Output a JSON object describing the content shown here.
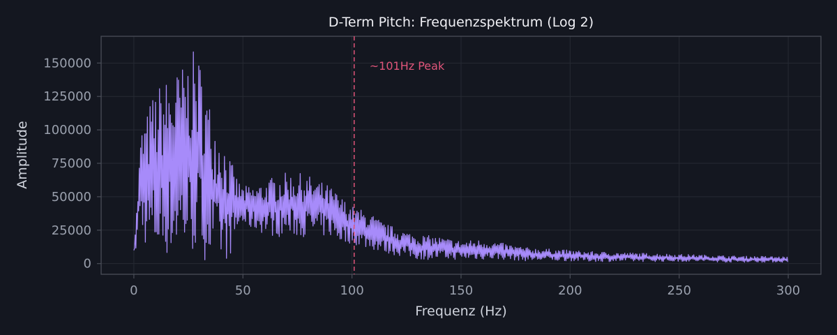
{
  "chart_data": {
    "type": "line",
    "title": "D-Term Pitch: Frequenzspektrum (Log 2)",
    "xlabel": "Frequenz (Hz)",
    "ylabel": "Amplitude",
    "xlim": [
      -15,
      315
    ],
    "ylim": [
      -8000,
      170000
    ],
    "xticks": [
      0,
      50,
      100,
      150,
      200,
      250,
      300
    ],
    "yticks": [
      0,
      25000,
      50000,
      75000,
      100000,
      125000,
      150000
    ],
    "grid": true,
    "colors": {
      "background": "#141720",
      "plot_background": "#141720",
      "frame": "#4a4e58",
      "grid": "#262a33",
      "line": "#a78bfa",
      "annotation": "#e0557a"
    },
    "annotation": {
      "x": 101,
      "text": "~101Hz Peak"
    },
    "series": [
      {
        "x": [
          0,
          1,
          2,
          3,
          4,
          5,
          6,
          8,
          10,
          12,
          14,
          16,
          18,
          20,
          22,
          24,
          26,
          28,
          30,
          32,
          34,
          36,
          38,
          40,
          42,
          44,
          46,
          48,
          50,
          55,
          60,
          65,
          70,
          75,
          80,
          85,
          90,
          95,
          100,
          105,
          110,
          115,
          120,
          125,
          130,
          140,
          150,
          160,
          170,
          180,
          190,
          200,
          210,
          220,
          230,
          240,
          250,
          260,
          270,
          280,
          290,
          300
        ],
        "upper": [
          18000,
          35000,
          60000,
          95000,
          105000,
          110000,
          112000,
          125000,
          130000,
          135000,
          138000,
          140000,
          142000,
          145000,
          148000,
          152000,
          156000,
          160000,
          155000,
          140000,
          125000,
          115000,
          105000,
          100000,
          90000,
          80000,
          70000,
          62000,
          58000,
          58000,
          62000,
          66000,
          68000,
          68000,
          66000,
          62000,
          58000,
          50000,
          43000,
          40000,
          36000,
          30000,
          27000,
          24000,
          22000,
          20000,
          17000,
          18000,
          15000,
          12000,
          11000,
          10000,
          9000,
          8500,
          8000,
          7500,
          7000,
          6500,
          6000,
          5500,
          5500,
          5000
        ],
        "lower": [
          0,
          10000,
          25000,
          30000,
          20000,
          15000,
          10000,
          5000,
          5000,
          5000,
          5000,
          5000,
          6000,
          8000,
          8000,
          7000,
          6000,
          6000,
          5000,
          3000,
          2000,
          2000,
          1000,
          1000,
          2000,
          5000,
          15000,
          25000,
          28000,
          25000,
          22000,
          20000,
          20000,
          20000,
          20000,
          20000,
          20000,
          15000,
          15000,
          12000,
          10000,
          8000,
          6000,
          5000,
          3000,
          3000,
          3000,
          3000,
          3000,
          2000,
          2000,
          2000,
          1500,
          1500,
          1500,
          1500,
          1500,
          1500,
          1000,
          1000,
          1000,
          1000
        ]
      }
    ]
  }
}
